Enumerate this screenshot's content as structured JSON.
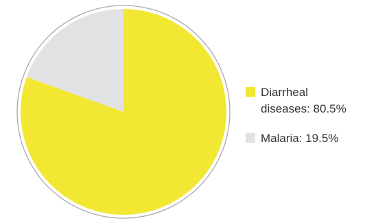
{
  "chart_data": {
    "type": "pie",
    "slices": [
      {
        "label": "Diarrheal diseases",
        "value": 80.5,
        "display": "80.5%",
        "color": "#f2e834"
      },
      {
        "label": "Malaria",
        "value": 19.5,
        "display": "19.5%",
        "color": "#e2e2e4"
      }
    ],
    "legend": {
      "placement": "right",
      "items": [
        {
          "lines": [
            "Diarrheal",
            "diseases: 80.5%"
          ],
          "color": "#f2e834"
        },
        {
          "lines": [
            "Malaria: 19.5%"
          ],
          "color": "#e2e2e4"
        }
      ]
    },
    "ring_color": "#a8a8a8"
  }
}
